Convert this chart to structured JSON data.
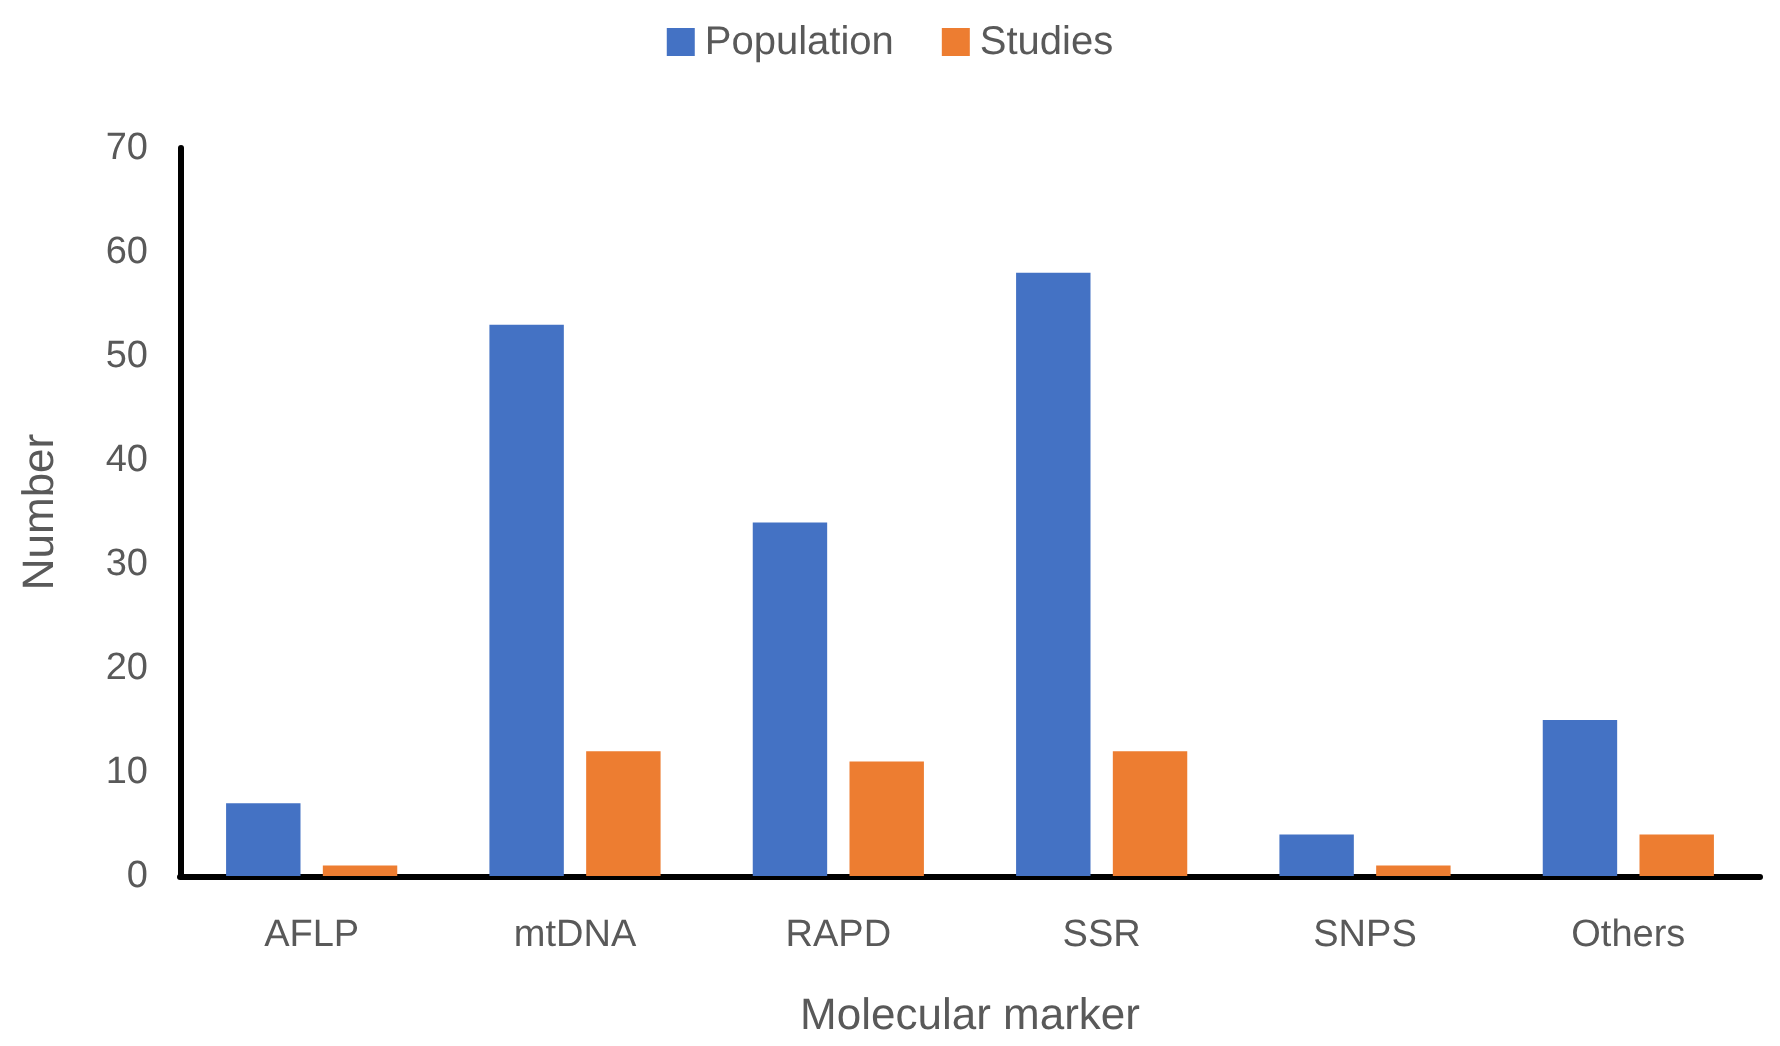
{
  "chart_data": {
    "type": "bar",
    "xlabel": "Molecular marker",
    "ylabel": "Number",
    "categories": [
      "AFLP",
      "mtDNA",
      "RAPD",
      "SSR",
      "SNPS",
      "Others"
    ],
    "series": [
      {
        "name": "Population",
        "color": "#4472c4",
        "values": [
          7,
          53,
          34,
          58,
          4,
          15
        ]
      },
      {
        "name": "Studies",
        "color": "#ed7d31",
        "values": [
          1,
          12,
          11,
          12,
          1,
          4
        ]
      }
    ],
    "ylim": [
      0,
      70
    ],
    "yticks": [
      0,
      10,
      20,
      30,
      40,
      50,
      60,
      70
    ],
    "grid": false,
    "legend": "top"
  }
}
